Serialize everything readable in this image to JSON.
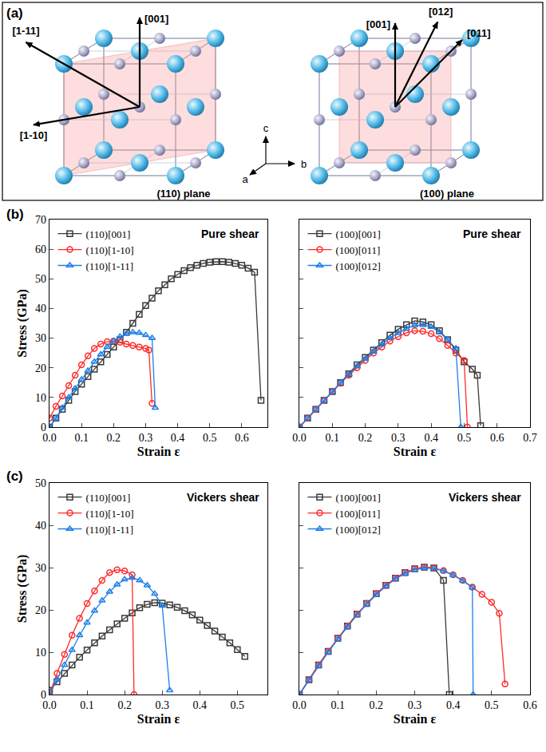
{
  "diagram": {
    "label": "(a)",
    "axes": [
      "a",
      "b",
      "c"
    ],
    "structures": [
      {
        "plane": "(110) plane",
        "directions": [
          "[1-11]",
          "[001]",
          "[1-10]"
        ]
      },
      {
        "plane": "(100) plane",
        "directions": [
          "[001]",
          "[011]",
          "[012]"
        ]
      }
    ]
  },
  "chart_data": [
    {
      "type": "line",
      "panel_label": "(b)",
      "annotation": "Pure shear",
      "xlabel": "Strain ε",
      "ylabel": "Stress (GPa)",
      "xlim": [
        0,
        0.68
      ],
      "xticks": [
        {
          "value": 0,
          "label": "0.0"
        },
        {
          "value": 0.1,
          "label": "0.1"
        },
        {
          "value": 0.2,
          "label": "0.2"
        },
        {
          "value": 0.3,
          "label": "0.3"
        },
        {
          "value": 0.4,
          "label": "0.4"
        },
        {
          "value": 0.5,
          "label": "0.5"
        },
        {
          "value": 0.6,
          "label": "0.6"
        }
      ],
      "ylim": [
        0,
        70
      ],
      "yticks": [
        0,
        10,
        20,
        30,
        40,
        50,
        60,
        70
      ],
      "legend": "upper left",
      "grid": false,
      "series": [
        {
          "name": "(110)[001]",
          "color": "#3a3a3a",
          "marker": "square-open",
          "x": [
            0,
            0.02,
            0.04,
            0.06,
            0.08,
            0.1,
            0.12,
            0.14,
            0.16,
            0.18,
            0.2,
            0.22,
            0.24,
            0.26,
            0.28,
            0.3,
            0.32,
            0.34,
            0.36,
            0.38,
            0.4,
            0.42,
            0.44,
            0.46,
            0.48,
            0.5,
            0.52,
            0.54,
            0.56,
            0.58,
            0.6,
            0.62,
            0.64,
            0.66
          ],
          "values": [
            0,
            3,
            6,
            9,
            12,
            14.5,
            17,
            19.5,
            22,
            24.5,
            27,
            29.5,
            32,
            35,
            38,
            41,
            43.5,
            46,
            48,
            50,
            51.5,
            52.8,
            53.8,
            54.6,
            55.2,
            55.6,
            55.8,
            55.8,
            55.6,
            55.2,
            54.6,
            53.6,
            52.2,
            9
          ]
        },
        {
          "name": "(110)[1-10]",
          "color": "#ff2a2a",
          "marker": "circle-open",
          "x": [
            0,
            0.02,
            0.04,
            0.06,
            0.08,
            0.1,
            0.12,
            0.14,
            0.16,
            0.18,
            0.2,
            0.22,
            0.24,
            0.26,
            0.28,
            0.3,
            0.31,
            0.32
          ],
          "values": [
            3,
            7,
            10.5,
            14,
            17.5,
            21,
            24,
            26.5,
            28,
            28.8,
            29,
            28.6,
            28,
            27.5,
            27,
            26.5,
            26,
            8
          ]
        },
        {
          "name": "(110)[1-11]",
          "color": "#1f7fe8",
          "marker": "triangle-up-open",
          "x": [
            0,
            0.02,
            0.04,
            0.06,
            0.08,
            0.1,
            0.12,
            0.14,
            0.16,
            0.18,
            0.2,
            0.22,
            0.24,
            0.26,
            0.28,
            0.3,
            0.32,
            0.33
          ],
          "values": [
            0,
            3,
            6.5,
            10,
            13,
            16,
            19,
            22,
            24.5,
            27,
            29,
            30.5,
            31.5,
            32,
            31.8,
            31,
            30,
            6.5
          ]
        }
      ]
    },
    {
      "type": "line",
      "annotation": "Pure shear",
      "xlabel": "Strain ε",
      "xlim": [
        0,
        0.7
      ],
      "xticks": [
        {
          "value": 0,
          "label": "0.0"
        },
        {
          "value": 0.1,
          "label": "0.1"
        },
        {
          "value": 0.2,
          "label": "0.2"
        },
        {
          "value": 0.3,
          "label": "0.3"
        },
        {
          "value": 0.4,
          "label": "0.4"
        },
        {
          "value": 0.5,
          "label": "0.5"
        },
        {
          "value": 0.6,
          "label": "0.6"
        },
        {
          "value": 0.7,
          "label": "0.7"
        }
      ],
      "ylim": [
        0,
        70
      ],
      "yticks": [
        0,
        10,
        20,
        30,
        40,
        50,
        60,
        70
      ],
      "tick_labels": "x",
      "legend": "upper left",
      "grid": false,
      "series": [
        {
          "name": "(100)[001]",
          "color": "#3a3a3a",
          "marker": "square-open",
          "x": [
            0,
            0.025,
            0.05,
            0.075,
            0.1,
            0.125,
            0.15,
            0.175,
            0.2,
            0.225,
            0.25,
            0.275,
            0.3,
            0.325,
            0.35,
            0.375,
            0.4,
            0.425,
            0.45,
            0.475,
            0.5,
            0.525,
            0.54,
            0.55
          ],
          "values": [
            0,
            3,
            6,
            9,
            12,
            15,
            18,
            21,
            23.5,
            26,
            28.5,
            31,
            33,
            34.5,
            35.8,
            35.5,
            34.5,
            32.5,
            29.5,
            26,
            22,
            19.5,
            17.5,
            0.5
          ]
        },
        {
          "name": "(100)[011]",
          "color": "#ff2a2a",
          "marker": "circle-open",
          "x": [
            0,
            0.025,
            0.05,
            0.075,
            0.1,
            0.125,
            0.15,
            0.175,
            0.2,
            0.225,
            0.25,
            0.275,
            0.3,
            0.325,
            0.35,
            0.375,
            0.4,
            0.425,
            0.45,
            0.475,
            0.5,
            0.51
          ],
          "values": [
            0,
            3,
            6,
            9,
            12,
            14.8,
            17.5,
            20,
            22.5,
            25,
            27,
            29,
            30.5,
            31.8,
            32.5,
            32.3,
            31.5,
            29.8,
            27.5,
            25,
            22.5,
            0
          ]
        },
        {
          "name": "(100)[012]",
          "color": "#1f7fe8",
          "marker": "triangle-up-open",
          "x": [
            0,
            0.025,
            0.05,
            0.075,
            0.1,
            0.125,
            0.15,
            0.175,
            0.2,
            0.225,
            0.25,
            0.275,
            0.3,
            0.325,
            0.35,
            0.375,
            0.4,
            0.425,
            0.45,
            0.475,
            0.49
          ],
          "values": [
            0,
            3,
            6,
            9,
            12,
            15,
            17.8,
            20.5,
            23,
            25.5,
            27.8,
            30,
            31.8,
            33.2,
            34.3,
            34.4,
            33.8,
            32,
            29.5,
            26.5,
            0
          ]
        }
      ]
    },
    {
      "type": "line",
      "panel_label": "(c)",
      "annotation": "Vickers shear",
      "xlabel": "Strain ε",
      "ylabel": "Stress (GPa)",
      "xlim": [
        0,
        0.58
      ],
      "xticks": [
        {
          "value": 0,
          "label": "0.0"
        },
        {
          "value": 0.1,
          "label": "0.1"
        },
        {
          "value": 0.2,
          "label": "0.2"
        },
        {
          "value": 0.3,
          "label": "0.3"
        },
        {
          "value": 0.4,
          "label": "0.4"
        },
        {
          "value": 0.5,
          "label": "0.5"
        }
      ],
      "ylim": [
        0,
        50
      ],
      "yticks": [
        0,
        10,
        20,
        30,
        40,
        50
      ],
      "legend": "upper left",
      "grid": false,
      "series": [
        {
          "name": "(110)[001]",
          "color": "#3a3a3a",
          "marker": "square-open",
          "x": [
            0,
            0.02,
            0.04,
            0.06,
            0.08,
            0.1,
            0.12,
            0.14,
            0.16,
            0.18,
            0.2,
            0.22,
            0.24,
            0.26,
            0.28,
            0.3,
            0.32,
            0.34,
            0.36,
            0.38,
            0.4,
            0.42,
            0.44,
            0.46,
            0.48,
            0.5,
            0.52
          ],
          "values": [
            1,
            3,
            5,
            7,
            8.8,
            10.5,
            12.2,
            13.8,
            15.3,
            16.7,
            18,
            19.3,
            20.5,
            21.3,
            21.7,
            21.6,
            21.2,
            20.6,
            19.8,
            18.8,
            17.6,
            16.3,
            15,
            13.6,
            12.2,
            10.6,
            9
          ]
        },
        {
          "name": "(110)[1-10]",
          "color": "#ff2a2a",
          "marker": "circle-open",
          "x": [
            0,
            0.02,
            0.04,
            0.06,
            0.08,
            0.1,
            0.12,
            0.14,
            0.16,
            0.18,
            0.2,
            0.22,
            0.225
          ],
          "values": [
            0,
            5,
            9.5,
            14,
            18,
            21.5,
            24.5,
            27,
            28.8,
            29.5,
            29.2,
            28.3,
            0
          ]
        },
        {
          "name": "(110)[1-11]",
          "color": "#1f7fe8",
          "marker": "triangle-up-open",
          "x": [
            0,
            0.02,
            0.04,
            0.06,
            0.08,
            0.1,
            0.12,
            0.14,
            0.16,
            0.18,
            0.2,
            0.22,
            0.24,
            0.26,
            0.28,
            0.3,
            0.32
          ],
          "values": [
            0,
            3.5,
            7,
            10.5,
            14,
            17,
            19.8,
            22.2,
            24.3,
            26,
            27.2,
            27.6,
            27,
            25.8,
            23.8,
            21,
            1
          ]
        }
      ]
    },
    {
      "type": "line",
      "annotation": "Vickers shear",
      "xlabel": "Strain ε",
      "xlim": [
        0,
        0.6
      ],
      "xticks": [
        {
          "value": 0,
          "label": "0.0"
        },
        {
          "value": 0.1,
          "label": "0.1"
        },
        {
          "value": 0.2,
          "label": "0.2"
        },
        {
          "value": 0.3,
          "label": "0.3"
        },
        {
          "value": 0.4,
          "label": "0.4"
        },
        {
          "value": 0.5,
          "label": "0.5"
        },
        {
          "value": 0.6,
          "label": "0.6"
        }
      ],
      "ylim": [
        0,
        50
      ],
      "yticks": [
        0,
        10,
        20,
        30,
        40,
        50
      ],
      "tick_labels": "x",
      "legend": "upper left",
      "grid": false,
      "series": [
        {
          "name": "(100)[001]",
          "color": "#3a3a3a",
          "marker": "square-open",
          "x": [
            0,
            0.025,
            0.05,
            0.075,
            0.1,
            0.125,
            0.15,
            0.175,
            0.2,
            0.225,
            0.25,
            0.275,
            0.3,
            0.325,
            0.35,
            0.375,
            0.39
          ],
          "values": [
            0,
            3.5,
            7,
            10.2,
            13.3,
            16.2,
            19,
            21.5,
            23.8,
            25.8,
            27.5,
            28.8,
            29.7,
            30.1,
            29.9,
            27,
            0
          ]
        },
        {
          "name": "(100)[011]",
          "color": "#ff2a2a",
          "marker": "circle-open",
          "x": [
            0,
            0.025,
            0.05,
            0.075,
            0.1,
            0.125,
            0.15,
            0.175,
            0.2,
            0.225,
            0.25,
            0.275,
            0.3,
            0.325,
            0.35,
            0.375,
            0.4,
            0.425,
            0.45,
            0.475,
            0.5,
            0.52,
            0.535
          ],
          "values": [
            0,
            3.5,
            7,
            10.2,
            13.3,
            16.2,
            19,
            21.5,
            23.8,
            25.8,
            27.5,
            28.8,
            29.7,
            30.1,
            29.9,
            29.3,
            28.3,
            27,
            25.4,
            23.7,
            21.8,
            19.2,
            2.5
          ]
        },
        {
          "name": "(100)[012]",
          "color": "#1f7fe8",
          "marker": "triangle-up-open",
          "x": [
            0,
            0.025,
            0.05,
            0.075,
            0.1,
            0.125,
            0.15,
            0.175,
            0.2,
            0.225,
            0.25,
            0.275,
            0.3,
            0.325,
            0.35,
            0.375,
            0.4,
            0.425,
            0.45,
            0.452
          ],
          "values": [
            0,
            3.4,
            6.8,
            10,
            13.1,
            16,
            18.8,
            21.3,
            23.6,
            25.6,
            27.3,
            28.6,
            29.5,
            29.9,
            29.8,
            29.2,
            28.2,
            26.9,
            25.3,
            0
          ]
        }
      ]
    }
  ]
}
